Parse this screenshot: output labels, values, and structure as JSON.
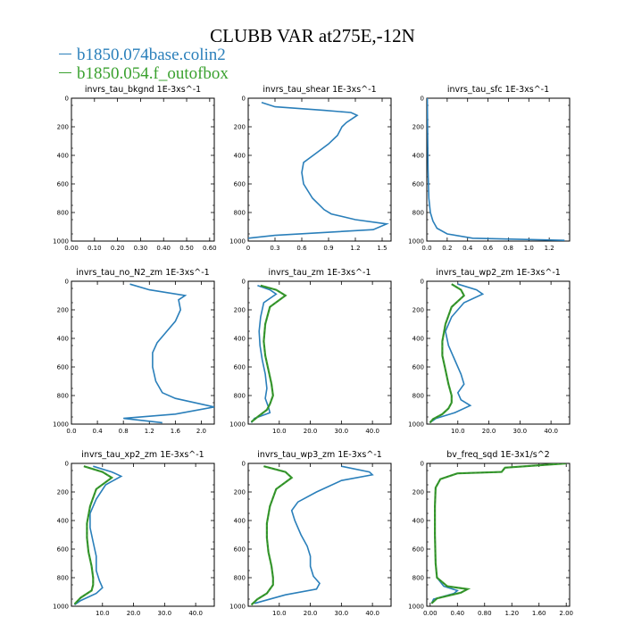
{
  "title": "CLUBB VAR at275E,-12N",
  "colors": {
    "series1": "#2a7fba",
    "series2": "#3aa12f",
    "series2_dash": "#2f7a2a",
    "axis": "#000000"
  },
  "legend": [
    {
      "name": "b1850.074base.colin2",
      "color": "#2a7fba"
    },
    {
      "name": "b1850.054.f_outofbox",
      "color": "#3aa12f"
    }
  ],
  "chart_data": [
    {
      "type": "line",
      "title": "invrs_tau_bkgnd   1E-3xs^-1",
      "xlim": [
        0,
        0.62
      ],
      "ylim": [
        1000,
        0
      ],
      "xticks": [
        "0.00",
        "0.10",
        "0.20",
        "0.30",
        "0.40",
        "0.50",
        "0.60"
      ],
      "xtick_values": [
        0,
        0.1,
        0.2,
        0.3,
        0.4,
        0.5,
        0.6
      ],
      "yticks": [
        "0",
        "200",
        "400",
        "600",
        "800",
        "1000"
      ],
      "ytick_values": [
        0,
        200,
        400,
        600,
        800,
        1000
      ],
      "series": []
    },
    {
      "type": "line",
      "title": "invrs_tau_shear   1E-3xs^-1",
      "xlim": [
        0,
        1.6
      ],
      "ylim": [
        1000,
        0
      ],
      "xticks": [
        "0",
        "0.3",
        "0.6",
        "0.9",
        "1.2",
        "1.5"
      ],
      "xtick_values": [
        0,
        0.3,
        0.6,
        0.9,
        1.2,
        1.5
      ],
      "yticks": [
        "0",
        "200",
        "400",
        "600",
        "800",
        "1000"
      ],
      "ytick_values": [
        0,
        200,
        400,
        600,
        800,
        1000
      ],
      "series": [
        {
          "color_key": "series1",
          "x": [
            0.15,
            0.3,
            0.85,
            1.15,
            1.22,
            1.1,
            1.05,
            1.0,
            0.9,
            0.75,
            0.62,
            0.6,
            0.62,
            0.72,
            0.85,
            0.93,
            1.2,
            1.55,
            1.4,
            0.3,
            0.0
          ],
          "y": [
            30,
            60,
            85,
            100,
            120,
            170,
            200,
            260,
            320,
            390,
            450,
            520,
            600,
            700,
            780,
            810,
            850,
            880,
            920,
            960,
            980
          ]
        }
      ]
    },
    {
      "type": "line",
      "title": "invrs_tau_sfc   1E-3xs^-1",
      "xlim": [
        0,
        1.4
      ],
      "ylim": [
        1000,
        0
      ],
      "xticks": [
        "0.0",
        "0.2",
        "0.4",
        "0.6",
        "0.8",
        "1.0",
        "1.2"
      ],
      "xtick_values": [
        0,
        0.2,
        0.4,
        0.6,
        0.8,
        1.0,
        1.2
      ],
      "yticks": [
        "0",
        "200",
        "400",
        "600",
        "800",
        "1000"
      ],
      "ytick_values": [
        0,
        200,
        400,
        600,
        800,
        1000
      ],
      "series": [
        {
          "color_key": "series1",
          "x": [
            0.005,
            0.008,
            0.012,
            0.02,
            0.035,
            0.06,
            0.1,
            0.2,
            0.45,
            1.35
          ],
          "y": [
            0,
            200,
            500,
            700,
            800,
            860,
            910,
            950,
            980,
            995
          ]
        }
      ]
    },
    {
      "type": "line",
      "title": "invrs_tau_no_N2_zm   1E-3xs^-1",
      "xlim": [
        0,
        2.2
      ],
      "ylim": [
        1000,
        0
      ],
      "xticks": [
        "0.0",
        "0.4",
        "0.8",
        "1.2",
        "1.6",
        "2.0"
      ],
      "xtick_values": [
        0,
        0.4,
        0.8,
        1.2,
        1.6,
        2.0
      ],
      "yticks": [
        "0",
        "200",
        "400",
        "600",
        "800",
        "1000"
      ],
      "ytick_values": [
        0,
        200,
        400,
        600,
        800,
        1000
      ],
      "series": [
        {
          "color_key": "series1",
          "x": [
            0.9,
            1.2,
            1.75,
            1.65,
            1.68,
            1.6,
            1.45,
            1.32,
            1.25,
            1.25,
            1.3,
            1.4,
            1.6,
            2.2,
            1.6,
            0.8,
            1.4
          ],
          "y": [
            20,
            60,
            100,
            130,
            200,
            280,
            360,
            430,
            500,
            600,
            700,
            780,
            820,
            880,
            930,
            960,
            990
          ]
        }
      ]
    },
    {
      "type": "line",
      "title": "invrs_tau_zm   1E-3xs^-1",
      "xlim": [
        0,
        46
      ],
      "ylim": [
        1000,
        0
      ],
      "xticks": [
        "10.0",
        "20.0",
        "30.0",
        "40.0"
      ],
      "xtick_values": [
        10,
        20,
        30,
        40
      ],
      "yticks": [
        "0",
        "200",
        "400",
        "600",
        "800",
        "1000"
      ],
      "ytick_values": [
        0,
        200,
        400,
        600,
        800,
        1000
      ],
      "series": [
        {
          "color_key": "series1",
          "x": [
            3,
            7,
            9,
            5,
            4,
            3.5,
            3.8,
            4.5,
            5.5,
            6,
            5.5,
            6.5,
            7,
            2,
            1
          ],
          "y": [
            30,
            60,
            90,
            150,
            250,
            350,
            450,
            550,
            650,
            750,
            820,
            880,
            920,
            960,
            990
          ]
        },
        {
          "color_key": "series2",
          "dashed": true,
          "x": [
            4,
            9,
            12,
            7,
            5.5,
            5,
            5.5,
            6.5,
            7.5,
            8,
            7,
            6,
            3,
            1
          ],
          "y": [
            30,
            60,
            100,
            180,
            300,
            420,
            520,
            620,
            720,
            800,
            860,
            900,
            950,
            985
          ]
        }
      ]
    },
    {
      "type": "line",
      "title": "invrs_tau_wp2_zm   1E-3xs^-1",
      "xlim": [
        0,
        46
      ],
      "ylim": [
        1000,
        0
      ],
      "xticks": [
        "10.0",
        "20.0",
        "30.0",
        "40.0"
      ],
      "xtick_values": [
        10,
        20,
        30,
        40
      ],
      "yticks": [
        "0",
        "200",
        "400",
        "600",
        "800",
        "1000"
      ],
      "ytick_values": [
        0,
        200,
        400,
        600,
        800,
        1000
      ],
      "series": [
        {
          "color_key": "series1",
          "x": [
            10,
            16,
            18,
            12,
            8,
            6,
            7,
            9,
            11,
            12,
            10,
            11,
            14,
            9,
            3,
            1
          ],
          "y": [
            20,
            60,
            90,
            150,
            250,
            350,
            450,
            550,
            650,
            720,
            780,
            830,
            870,
            920,
            960,
            990
          ]
        },
        {
          "color_key": "series2",
          "dashed": true,
          "x": [
            8,
            11,
            12,
            8,
            6,
            5,
            5,
            6,
            7,
            8,
            8,
            7,
            5,
            2,
            1
          ],
          "y": [
            20,
            60,
            100,
            180,
            300,
            420,
            520,
            620,
            720,
            800,
            850,
            890,
            930,
            965,
            990
          ]
        }
      ]
    },
    {
      "type": "line",
      "title": "invrs_tau_xp2_zm   1E-3xs^-1",
      "xlim": [
        0,
        46
      ],
      "ylim": [
        1000,
        0
      ],
      "xticks": [
        "10.0",
        "20.0",
        "30.0",
        "40.0"
      ],
      "xtick_values": [
        10,
        20,
        30,
        40
      ],
      "yticks": [
        "0",
        "200",
        "400",
        "600",
        "800",
        "1000"
      ],
      "ytick_values": [
        0,
        200,
        400,
        600,
        800,
        1000
      ],
      "series": [
        {
          "color_key": "series1",
          "x": [
            7,
            13,
            16,
            11,
            8,
            6,
            6,
            7,
            8,
            8,
            9,
            10,
            8,
            3,
            1
          ],
          "y": [
            20,
            60,
            90,
            150,
            250,
            350,
            450,
            550,
            650,
            750,
            820,
            870,
            910,
            960,
            990
          ]
        },
        {
          "color_key": "series2",
          "dashed": true,
          "x": [
            4,
            10,
            13,
            8,
            6,
            5,
            5,
            5.5,
            6.5,
            7,
            7,
            6.5,
            3,
            1
          ],
          "y": [
            20,
            60,
            100,
            180,
            300,
            420,
            520,
            620,
            720,
            800,
            850,
            890,
            940,
            985
          ]
        }
      ]
    },
    {
      "type": "line",
      "title": "invrs_tau_wp3_zm   1E-3xs^-1",
      "xlim": [
        0,
        46
      ],
      "ylim": [
        1000,
        0
      ],
      "xticks": [
        "10.0",
        "20.0",
        "30.0",
        "40.0"
      ],
      "xtick_values": [
        10,
        20,
        30,
        40
      ],
      "yticks": [
        "0",
        "200",
        "400",
        "600",
        "800",
        "1000"
      ],
      "ytick_values": [
        0,
        200,
        400,
        600,
        800,
        1000
      ],
      "series": [
        {
          "color_key": "series1",
          "x": [
            30,
            39,
            40,
            30,
            22,
            16,
            14,
            15,
            17,
            19,
            20,
            20,
            21,
            23,
            22,
            12,
            2
          ],
          "y": [
            20,
            60,
            80,
            120,
            200,
            270,
            330,
            400,
            500,
            580,
            650,
            720,
            790,
            840,
            880,
            920,
            980
          ]
        },
        {
          "color_key": "series2",
          "dashed": true,
          "x": [
            5,
            12,
            14,
            9,
            7,
            6,
            6,
            6.5,
            7.5,
            8,
            8,
            7,
            6,
            3,
            1
          ],
          "y": [
            20,
            60,
            100,
            180,
            300,
            420,
            520,
            620,
            720,
            800,
            850,
            880,
            910,
            950,
            990
          ]
        }
      ]
    },
    {
      "type": "line",
      "title": "bv_freq_sqd   1E-3x1/s^2",
      "xlim": [
        -0.05,
        2.05
      ],
      "ylim": [
        1000,
        0
      ],
      "xticks": [
        "0.00",
        "0.40",
        "0.80",
        "1.20",
        "1.60",
        "2.00"
      ],
      "xtick_values": [
        0,
        0.4,
        0.8,
        1.2,
        1.6,
        2.0
      ],
      "yticks": [
        "0",
        "200",
        "400",
        "600",
        "800",
        "1000"
      ],
      "ytick_values": [
        0,
        200,
        400,
        600,
        800,
        1000
      ],
      "series": [
        {
          "color_key": "series1",
          "x": [
            2.0,
            1.1,
            1.05,
            0.4,
            0.15,
            0.08,
            0.07,
            0.07,
            0.08,
            0.1,
            0.2,
            0.4,
            0.35,
            0.05,
            0.02
          ],
          "y": [
            0,
            30,
            60,
            70,
            110,
            170,
            300,
            500,
            700,
            800,
            860,
            890,
            910,
            950,
            980
          ]
        },
        {
          "color_key": "series2",
          "dashed": true,
          "x": [
            2.0,
            1.1,
            1.05,
            0.4,
            0.15,
            0.08,
            0.07,
            0.07,
            0.08,
            0.1,
            0.25,
            0.55,
            0.45,
            0.1,
            0.02
          ],
          "y": [
            0,
            30,
            60,
            70,
            110,
            170,
            300,
            500,
            700,
            800,
            860,
            880,
            905,
            945,
            980
          ]
        }
      ]
    }
  ]
}
